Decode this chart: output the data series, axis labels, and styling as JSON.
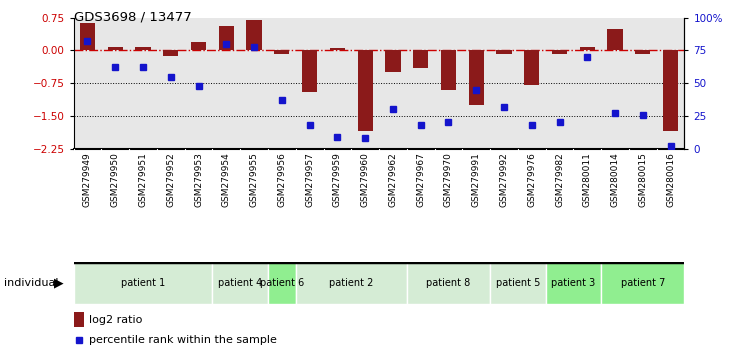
{
  "title": "GDS3698 / 13477",
  "samples": [
    "GSM279949",
    "GSM279950",
    "GSM279951",
    "GSM279952",
    "GSM279953",
    "GSM279954",
    "GSM279955",
    "GSM279956",
    "GSM279957",
    "GSM279959",
    "GSM279960",
    "GSM279962",
    "GSM279967",
    "GSM279970",
    "GSM279991",
    "GSM279992",
    "GSM279976",
    "GSM279982",
    "GSM280011",
    "GSM280014",
    "GSM280015",
    "GSM280016"
  ],
  "log2_ratio": [
    0.62,
    0.08,
    0.09,
    -0.12,
    0.2,
    0.55,
    0.7,
    -0.08,
    -0.95,
    0.05,
    -1.85,
    -0.5,
    -0.4,
    -0.9,
    -1.25,
    -0.08,
    -0.8,
    -0.08,
    0.08,
    0.48,
    -0.08,
    -1.85
  ],
  "percentile": [
    82,
    62,
    62,
    55,
    48,
    80,
    78,
    37,
    18,
    9,
    8,
    30,
    18,
    20,
    45,
    32,
    18,
    20,
    70,
    27,
    26,
    2
  ],
  "patients": [
    {
      "label": "patient 1",
      "start": 0,
      "end": 5
    },
    {
      "label": "patient 4",
      "start": 5,
      "end": 7
    },
    {
      "label": "patient 6",
      "start": 7,
      "end": 8
    },
    {
      "label": "patient 2",
      "start": 8,
      "end": 12
    },
    {
      "label": "patient 8",
      "start": 12,
      "end": 15
    },
    {
      "label": "patient 5",
      "start": 15,
      "end": 17
    },
    {
      "label": "patient 3",
      "start": 17,
      "end": 19
    },
    {
      "label": "patient 7",
      "start": 19,
      "end": 22
    }
  ],
  "patient_colors": [
    "#d5ecd5",
    "#d5ecd5",
    "#90ee90",
    "#d5ecd5",
    "#d5ecd5",
    "#d5ecd5",
    "#90ee90",
    "#90ee90"
  ],
  "bar_color": "#8B1A1A",
  "dot_color": "#1414cc",
  "hline_color": "#CC0000",
  "ylim_left": [
    -2.25,
    0.75
  ],
  "ylim_right": [
    0,
    100
  ],
  "yticks_left": [
    0.75,
    0.0,
    -0.75,
    -1.5,
    -2.25
  ],
  "yticks_right": [
    100,
    75,
    50,
    25,
    0
  ],
  "ylabel_right_labels": [
    "100%",
    "75",
    "50",
    "25",
    "0"
  ]
}
